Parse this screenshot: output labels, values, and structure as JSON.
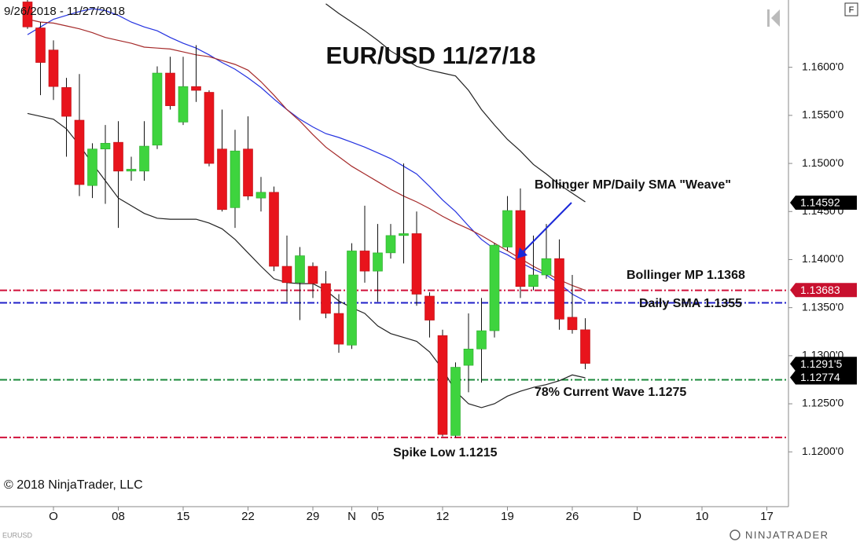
{
  "chart_data": {
    "type": "candlestick",
    "title": "EUR/USD 11/27/18",
    "subtitle": "9/26/2018 - 11/27/2018",
    "categories": [
      null,
      null,
      "O",
      null,
      null,
      null,
      null,
      "08",
      null,
      null,
      null,
      null,
      "15",
      null,
      null,
      null,
      null,
      "22",
      null,
      null,
      null,
      null,
      "29",
      null,
      null,
      "N",
      null,
      "05",
      null,
      null,
      null,
      null,
      "12",
      null,
      null,
      null,
      null,
      "19",
      null,
      null,
      null,
      null,
      "26",
      null,
      null,
      null,
      null,
      "D",
      null,
      null,
      null,
      null,
      "10",
      null,
      null,
      null,
      null,
      "17",
      null
    ],
    "open": [
      1.1668,
      1.1641,
      1.1618,
      1.1579,
      1.1545,
      1.1477,
      1.1515,
      1.1522,
      1.1492,
      1.1492,
      1.1519,
      1.1594,
      1.1543,
      1.158,
      1.1574,
      1.1515,
      1.1454,
      1.1515,
      1.1464,
      1.147,
      1.1393,
      1.1376,
      1.1393,
      1.1375,
      1.1344,
      1.1311,
      1.1409,
      1.1388,
      1.1407,
      1.1425,
      1.1427,
      1.1362,
      1.1321,
      1.1217,
      1.129,
      1.1307,
      1.1326,
      1.1413,
      1.1451,
      1.1372,
      1.1384,
      1.1401,
      1.134,
      1.1327,
      null,
      null,
      null,
      null,
      null,
      null,
      null,
      null,
      null,
      null,
      null,
      null,
      null,
      null,
      null
    ],
    "high": [
      1.167,
      1.1647,
      1.1628,
      1.1589,
      1.1593,
      1.1521,
      1.154,
      1.1544,
      1.1507,
      1.1544,
      1.1601,
      1.1611,
      1.1611,
      1.1623,
      1.1576,
      1.1556,
      1.1535,
      1.1549,
      1.1486,
      1.1476,
      1.1425,
      1.1413,
      1.1397,
      1.1388,
      1.1364,
      1.1417,
      1.1456,
      1.1437,
      1.1437,
      1.15,
      1.145,
      1.1366,
      1.1327,
      1.1293,
      1.1344,
      1.136,
      1.1417,
      1.1466,
      1.1474,
      1.1425,
      1.1437,
      1.1421,
      1.1384,
      1.1339,
      null,
      null,
      null,
      null,
      null,
      null,
      null,
      null,
      null,
      null,
      null,
      null,
      null,
      null,
      null
    ],
    "low": [
      1.164,
      1.1571,
      1.1566,
      1.1507,
      1.1466,
      1.1464,
      1.1458,
      1.1433,
      1.1482,
      1.1482,
      1.1515,
      1.1556,
      1.154,
      1.1564,
      1.1497,
      1.145,
      1.1433,
      1.1462,
      1.145,
      1.1388,
      1.1356,
      1.1337,
      1.136,
      1.1339,
      1.1303,
      1.1307,
      1.1376,
      1.1356,
      1.1401,
      1.1396,
      1.1352,
      1.1319,
      1.1216,
      1.1215,
      1.1262,
      1.1272,
      1.1319,
      1.1409,
      1.136,
      1.1368,
      1.138,
      1.1327,
      1.1323,
      1.1286,
      null,
      null,
      null,
      null,
      null,
      null,
      null,
      null,
      null,
      null,
      null,
      null,
      null,
      null,
      null
    ],
    "close": [
      1.1642,
      1.1605,
      1.158,
      1.1549,
      1.1478,
      1.1515,
      1.1521,
      1.1492,
      1.1494,
      1.1518,
      1.1594,
      1.156,
      1.158,
      1.1576,
      1.15,
      1.1452,
      1.1513,
      1.1466,
      1.147,
      1.1393,
      1.1376,
      1.1404,
      1.1375,
      1.1344,
      1.1312,
      1.1409,
      1.1388,
      1.1407,
      1.1425,
      1.1427,
      1.1364,
      1.1337,
      1.1218,
      1.1288,
      1.1307,
      1.1326,
      1.1415,
      1.1451,
      1.1372,
      1.1384,
      1.1401,
      1.1338,
      1.1327,
      1.1292,
      null,
      null,
      null,
      null,
      null,
      null,
      null,
      null,
      null,
      null,
      null,
      null,
      null,
      null,
      null
    ],
    "up_color": "#3ed43e",
    "down_color": "#e8141c",
    "lines": [
      {
        "color": "#2432e0",
        "values": [
          1.1634,
          1.1642,
          1.165,
          1.1654,
          1.1658,
          1.1661,
          1.1659,
          1.1654,
          1.1647,
          1.1642,
          1.1638,
          1.1631,
          1.1625,
          1.162,
          1.1613,
          1.1605,
          1.1598,
          1.1589,
          1.1579,
          1.1567,
          1.1556,
          1.1546,
          1.1538,
          1.1531,
          1.1527,
          1.1522,
          1.1517,
          1.1511,
          1.1505,
          1.1497,
          1.1489,
          1.1476,
          1.1462,
          1.145,
          1.1435,
          1.1421,
          1.1411,
          1.1405,
          1.1397,
          1.139,
          1.1384,
          1.1375,
          1.1364,
          1.1357,
          null,
          null,
          null,
          null,
          null,
          null,
          null,
          null,
          null,
          null,
          null,
          null,
          null,
          null,
          null
        ]
      },
      {
        "color": "#a52a2a",
        "values": [
          1.165,
          1.1647,
          1.1646,
          1.1643,
          1.164,
          1.1636,
          1.1631,
          1.1628,
          1.1625,
          1.1621,
          1.162,
          1.1619,
          1.1616,
          1.1613,
          1.1611,
          1.1607,
          1.1603,
          1.1597,
          1.1585,
          1.1571,
          1.1556,
          1.1544,
          1.153,
          1.1517,
          1.1507,
          1.1497,
          1.1489,
          1.1481,
          1.1473,
          1.1466,
          1.146,
          1.1453,
          1.1445,
          1.1438,
          1.1432,
          1.1425,
          1.1417,
          1.1409,
          1.1401,
          1.1393,
          1.1386,
          1.1379,
          1.1373,
          1.1368,
          null,
          null,
          null,
          null,
          null,
          null,
          null,
          null,
          null,
          null,
          null,
          null,
          null,
          null,
          null
        ]
      },
      {
        "color": "#222222",
        "values": [
          null,
          null,
          null,
          null,
          null,
          null,
          null,
          null,
          null,
          null,
          null,
          null,
          null,
          null,
          null,
          null,
          null,
          null,
          null,
          null,
          null,
          null,
          null,
          1.1666,
          1.1656,
          1.1647,
          1.1638,
          1.1628,
          1.1617,
          1.1609,
          1.1601,
          1.1597,
          1.1594,
          1.1591,
          1.1576,
          1.1556,
          1.154,
          1.1525,
          1.1513,
          1.1499,
          1.1489,
          1.1478,
          1.1469,
          1.146,
          null,
          null,
          null,
          null,
          null,
          null,
          null,
          null,
          null,
          null,
          null,
          null,
          null,
          null,
          null
        ]
      },
      {
        "color": "#222222",
        "values": [
          1.1552,
          1.1549,
          1.1546,
          1.1536,
          1.1519,
          1.15,
          1.1482,
          1.1464,
          1.1456,
          1.1448,
          1.1443,
          1.1442,
          1.1442,
          1.1442,
          1.1438,
          1.1432,
          1.1421,
          1.1407,
          1.1393,
          1.138,
          1.1376,
          1.1375,
          1.1375,
          1.1368,
          1.1357,
          1.135,
          1.1344,
          1.1331,
          1.1323,
          1.1319,
          1.1315,
          1.1304,
          1.1286,
          1.1263,
          1.125,
          1.1246,
          1.125,
          1.1258,
          1.1263,
          1.1267,
          1.127,
          1.1274,
          1.128,
          1.1277,
          null,
          null,
          null,
          null,
          null,
          null,
          null,
          null,
          null,
          null,
          null,
          null,
          null,
          null,
          null
        ]
      }
    ],
    "levels": [
      {
        "value": 1.1368,
        "label": "Bollinger MP 1.1368",
        "color": "#d0103a"
      },
      {
        "value": 1.1355,
        "label": "Daily SMA 1.1355",
        "color": "#2020c8"
      },
      {
        "value": 1.1275,
        "label": "78% Current Wave 1.1275",
        "color": "#1a8a3a"
      },
      {
        "value": 1.1215,
        "label": "Spike Low 1.1215",
        "color": "#d0103a"
      }
    ],
    "annotation": "Bollinger MP/Daily SMA \"Weave\"",
    "price_labels": [
      {
        "value": 1.14592,
        "label": "1.14592",
        "color": "#000000"
      },
      {
        "value": 1.13683,
        "label": "1.13683",
        "color": "#c8102e"
      },
      {
        "value": 1.12915,
        "label": "1.1291'5",
        "color": "#000000"
      },
      {
        "value": 1.12774,
        "label": "1.12774",
        "color": "#000000"
      }
    ],
    "ylim": [
      1.1143,
      1.167
    ],
    "yticks": [
      {
        "value": 1.16,
        "label": "1.1600'0"
      },
      {
        "value": 1.155,
        "label": "1.1550'0"
      },
      {
        "value": 1.15,
        "label": "1.1500'0"
      },
      {
        "value": 1.145,
        "label": "1.1450'0"
      },
      {
        "value": 1.14,
        "label": "1.1400'0"
      },
      {
        "value": 1.135,
        "label": "1.1350'0"
      },
      {
        "value": 1.13,
        "label": "1.1300'0"
      },
      {
        "value": 1.125,
        "label": "1.1250'0"
      },
      {
        "value": 1.12,
        "label": "1.1200'0"
      }
    ],
    "grid": false
  },
  "footer": {
    "copyright": "© 2018 NinjaTrader, LLC",
    "instrument": "EURUSD",
    "logo": "NINJATRADER",
    "button": "F"
  }
}
